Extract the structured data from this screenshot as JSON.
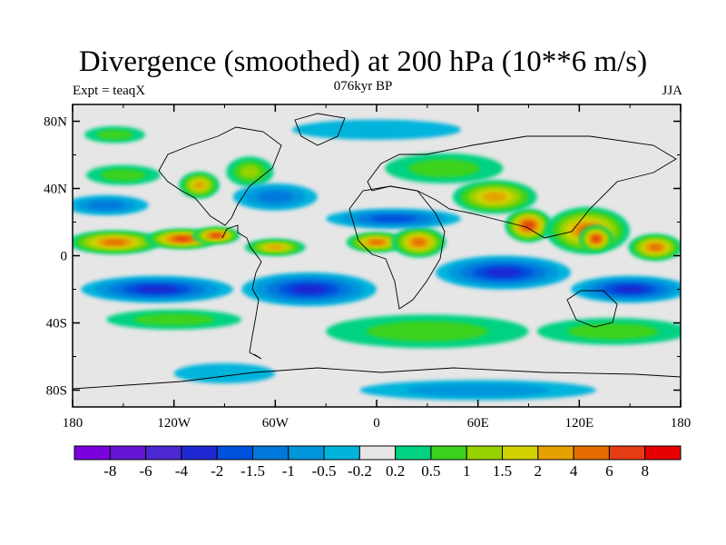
{
  "title": "Divergence (smoothed) at 200 hPa (10**6 m/s)",
  "left_string": "Expt = teaqX",
  "center_string": "076kyr BP",
  "right_string": "JJA",
  "map": {
    "projection": "cylindrical equidistant",
    "lon_range": [
      -180,
      180
    ],
    "lat_range": [
      -90,
      90
    ],
    "ocean_background": "#e6e6e6",
    "x_ticks": [
      {
        "value": -180,
        "label": "180"
      },
      {
        "value": -120,
        "label": "120W"
      },
      {
        "value": -60,
        "label": "60W"
      },
      {
        "value": 0,
        "label": "0"
      },
      {
        "value": 60,
        "label": "60E"
      },
      {
        "value": 120,
        "label": "120E"
      },
      {
        "value": 180,
        "label": "180"
      }
    ],
    "y_ticks": [
      {
        "value": 80,
        "label": "80N"
      },
      {
        "value": 40,
        "label": "40N"
      },
      {
        "value": 0,
        "label": "0"
      },
      {
        "value": -40,
        "label": "40S"
      },
      {
        "value": -80,
        "label": "80S"
      }
    ]
  },
  "colorbar": {
    "colors": [
      "#7a00dc",
      "#6414d2",
      "#4b28d2",
      "#1e28d2",
      "#0050dc",
      "#0078dc",
      "#0096dc",
      "#00b4dc",
      "#e6e6e6",
      "#00d282",
      "#3cd21e",
      "#96d200",
      "#d2d200",
      "#e6a000",
      "#e66e00",
      "#e63c14",
      "#e60000"
    ],
    "labels": [
      "-8",
      "-6",
      "-4",
      "-2",
      "-1.5",
      "-1",
      "-0.5",
      "-0.2",
      "0.2",
      "0.5",
      "1",
      "1.5",
      "2",
      "4",
      "6",
      "8"
    ]
  },
  "regions": [
    {
      "lon": -155,
      "lat": 8,
      "rx": 28,
      "ry": 7,
      "level": 4.5
    },
    {
      "lon": -115,
      "lat": 10,
      "rx": 22,
      "ry": 6,
      "level": 7
    },
    {
      "lon": -95,
      "lat": 12,
      "rx": 14,
      "ry": 5,
      "level": 6
    },
    {
      "lon": -60,
      "lat": 5,
      "rx": 18,
      "ry": 5,
      "level": 2
    },
    {
      "lon": 0,
      "lat": 8,
      "rx": 18,
      "ry": 6,
      "level": 4
    },
    {
      "lon": 25,
      "lat": 8,
      "rx": 16,
      "ry": 9,
      "level": 5
    },
    {
      "lon": 90,
      "lat": 18,
      "rx": 14,
      "ry": 10,
      "level": 6
    },
    {
      "lon": 125,
      "lat": 15,
      "rx": 25,
      "ry": 14,
      "level": 5
    },
    {
      "lon": 130,
      "lat": 10,
      "rx": 10,
      "ry": 8,
      "level": 7
    },
    {
      "lon": 165,
      "lat": 5,
      "rx": 16,
      "ry": 8,
      "level": 4
    },
    {
      "lon": 70,
      "lat": 35,
      "rx": 25,
      "ry": 10,
      "level": 2
    },
    {
      "lon": -105,
      "lat": 42,
      "rx": 12,
      "ry": 8,
      "level": 3
    },
    {
      "lon": -75,
      "lat": 50,
      "rx": 14,
      "ry": 9,
      "level": 1.2
    },
    {
      "lon": 40,
      "lat": 52,
      "rx": 35,
      "ry": 9,
      "level": 0.8
    },
    {
      "lon": -150,
      "lat": 48,
      "rx": 22,
      "ry": 6,
      "level": 0.6
    },
    {
      "lon": -130,
      "lat": -20,
      "rx": 45,
      "ry": 8,
      "level": -2.5
    },
    {
      "lon": -40,
      "lat": -20,
      "rx": 40,
      "ry": 10,
      "level": -2.5
    },
    {
      "lon": 10,
      "lat": 22,
      "rx": 40,
      "ry": 6,
      "level": -1.5
    },
    {
      "lon": 75,
      "lat": -10,
      "rx": 40,
      "ry": 10,
      "level": -2.2
    },
    {
      "lon": 150,
      "lat": -20,
      "rx": 35,
      "ry": 8,
      "level": -2
    },
    {
      "lon": -160,
      "lat": 30,
      "rx": 25,
      "ry": 6,
      "level": -1.2
    },
    {
      "lon": -60,
      "lat": 35,
      "rx": 25,
      "ry": 8,
      "level": -1
    },
    {
      "lon": -120,
      "lat": -38,
      "rx": 40,
      "ry": 6,
      "level": 0.6
    },
    {
      "lon": 30,
      "lat": -45,
      "rx": 60,
      "ry": 10,
      "level": 0.6
    },
    {
      "lon": 140,
      "lat": -45,
      "rx": 45,
      "ry": 8,
      "level": 0.7
    },
    {
      "lon": -90,
      "lat": -70,
      "rx": 30,
      "ry": 6,
      "level": -0.4
    },
    {
      "lon": 60,
      "lat": -80,
      "rx": 70,
      "ry": 6,
      "level": -0.7
    },
    {
      "lon": 0,
      "lat": 75,
      "rx": 50,
      "ry": 6,
      "level": -0.4
    },
    {
      "lon": -155,
      "lat": 72,
      "rx": 18,
      "ry": 5,
      "level": 0.6
    }
  ]
}
